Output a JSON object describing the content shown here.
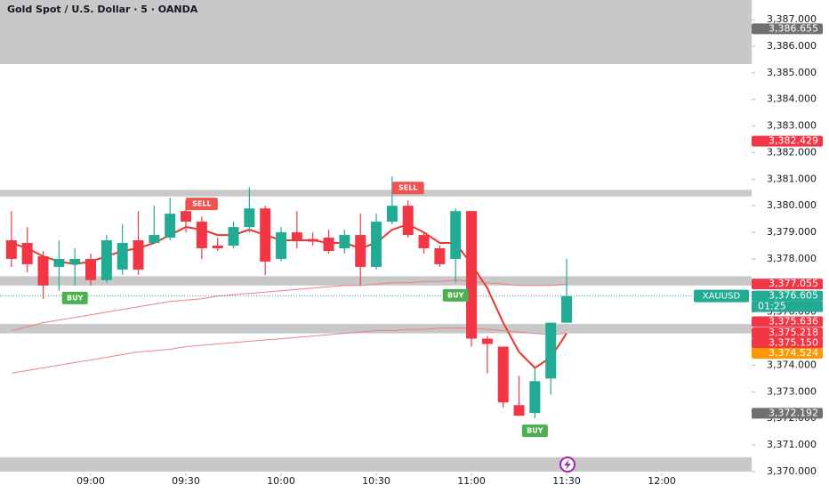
{
  "chart_data": {
    "type": "candlestick",
    "title": "Gold Spot / U.S. Dollar · 5 · OANDA",
    "symbol": "XAUUSD",
    "countdown": "01:25",
    "x": [
      515,
      520,
      525,
      530,
      535,
      540,
      545,
      550,
      555,
      560,
      565,
      570,
      575,
      580,
      585,
      590,
      595,
      600,
      605,
      610,
      615,
      620,
      625,
      630,
      635,
      640,
      645,
      650,
      655,
      660,
      665,
      670,
      675,
      680,
      685,
      690
    ],
    "open": [
      3378.7,
      3378.6,
      3378.1,
      3377.7,
      3377.8,
      3378.0,
      3377.2,
      3377.6,
      3378.7,
      3378.6,
      3378.8,
      3379.8,
      3379.4,
      3378.5,
      3378.5,
      3379.2,
      3379.9,
      3378.0,
      3379.0,
      3378.75,
      3378.8,
      3378.4,
      3378.9,
      3377.7,
      3379.4,
      3380.0,
      3378.9,
      3378.4,
      3378.0,
      3379.8,
      3375.0,
      3374.7,
      3372.5,
      3372.2,
      3373.5,
      3375.6
    ],
    "high": [
      3379.8,
      3379.2,
      3378.3,
      3378.7,
      3378.4,
      3378.2,
      3378.9,
      3379.3,
      3379.8,
      3380.0,
      3380.3,
      3380.2,
      3379.6,
      3378.8,
      3379.4,
      3380.7,
      3380.0,
      3379.2,
      3379.8,
      3379.0,
      3379.1,
      3379.1,
      3379.7,
      3379.7,
      3381.1,
      3380.2,
      3379.0,
      3378.5,
      3379.9,
      3379.8,
      3375.1,
      3374.7,
      3373.6,
      3373.9,
      3375.6,
      3378.0
    ],
    "low": [
      3377.7,
      3377.5,
      3376.5,
      3376.8,
      3377.0,
      3377.0,
      3377.1,
      3377.4,
      3377.4,
      3378.6,
      3378.7,
      3379.0,
      3378.0,
      3378.3,
      3378.4,
      3379.0,
      3377.4,
      3377.9,
      3378.4,
      3378.5,
      3378.2,
      3378.2,
      3377.0,
      3377.6,
      3379.3,
      3378.8,
      3378.2,
      3377.7,
      3377.1,
      3374.7,
      3373.7,
      3372.4,
      3372.1,
      3372.0,
      3372.9,
      3375.6
    ],
    "close": [
      3378.0,
      3377.8,
      3377.0,
      3378.0,
      3378.0,
      3377.2,
      3378.7,
      3378.6,
      3377.6,
      3378.9,
      3379.7,
      3379.4,
      3378.4,
      3378.4,
      3379.2,
      3379.9,
      3377.9,
      3379.0,
      3378.7,
      3378.65,
      3378.3,
      3378.9,
      3377.7,
      3379.4,
      3380.0,
      3378.9,
      3378.4,
      3377.8,
      3379.8,
      3375.0,
      3374.8,
      3372.6,
      3372.1,
      3373.4,
      3375.6,
      3376.6
    ],
    "up_color": "#22ab94",
    "down_color": "#f23645",
    "lines": [
      {
        "color": "#e8372c",
        "width": 2,
        "values": [
          3378.6,
          3378.4,
          3378.1,
          3377.9,
          3377.8,
          3377.9,
          3378.1,
          3378.3,
          3378.4,
          3378.6,
          3378.9,
          3379.2,
          3379.1,
          3378.9,
          3378.9,
          3379.1,
          3378.9,
          3378.7,
          3378.7,
          3378.7,
          3378.6,
          3378.6,
          3378.4,
          3378.6,
          3379.1,
          3379.3,
          3379.0,
          3378.6,
          3378.6,
          3377.8,
          3376.9,
          3375.6,
          3374.5,
          3373.9,
          3374.3,
          3375.2
        ]
      },
      {
        "color": "#f08080",
        "width": 1,
        "values": [
          3373.7,
          3373.8,
          3373.9,
          3374.0,
          3374.1,
          3374.2,
          3374.3,
          3374.4,
          3374.5,
          3374.55,
          3374.6,
          3374.7,
          3374.75,
          3374.8,
          3374.85,
          3374.9,
          3374.95,
          3375.0,
          3375.05,
          3375.1,
          3375.15,
          3375.2,
          3375.25,
          3375.3,
          3375.3,
          3375.35,
          3375.35,
          3375.4,
          3375.4,
          3375.4,
          3375.35,
          3375.3,
          3375.25,
          3375.2,
          3375.15,
          3375.2
        ]
      },
      {
        "color": "#f08080",
        "width": 1,
        "values": [
          3375.3,
          3375.45,
          3375.6,
          3375.7,
          3375.8,
          3375.9,
          3376.0,
          3376.1,
          3376.2,
          3376.3,
          3376.4,
          3376.45,
          3376.5,
          3376.6,
          3376.65,
          3376.7,
          3376.75,
          3376.8,
          3376.85,
          3376.9,
          3376.95,
          3377.0,
          3377.0,
          3377.05,
          3377.1,
          3377.1,
          3377.15,
          3377.15,
          3377.2,
          3377.15,
          3377.1,
          3377.05,
          3377.0,
          3377.0,
          3377.0,
          3377.05
        ]
      }
    ],
    "zones": [
      [
        3385.33,
        3387.74
      ],
      [
        3380.35,
        3380.6
      ],
      [
        3377.0,
        3377.35
      ],
      [
        3375.2,
        3375.55
      ],
      [
        3370.0,
        3370.54
      ]
    ],
    "zone_color": "#c8c8c8",
    "signals": [
      {
        "x": 535,
        "label": "BUY",
        "position": "below",
        "color": "#4caf50"
      },
      {
        "x": 575,
        "label": "SELL",
        "position": "above",
        "color": "#ef5350"
      },
      {
        "x": 640,
        "label": "SELL",
        "position": "above",
        "color": "#ef5350"
      },
      {
        "x": 655,
        "label": "BUY",
        "position": "below",
        "color": "#4caf50"
      },
      {
        "x": 680,
        "label": "BUY",
        "position": "below",
        "color": "#4caf50"
      }
    ],
    "current_price": 3376.605,
    "price_labels": [
      {
        "value": 3386.655,
        "label": "3,386.655",
        "color": "#707070"
      },
      {
        "value": 3382.429,
        "label": "3,382.429",
        "color": "#f23645"
      },
      {
        "value": 3377.055,
        "label": "3,377.055",
        "color": "#f23645"
      },
      {
        "value": 3376.605,
        "label": "3,376.605",
        "color": "#22ab94"
      },
      {
        "value": 3375.636,
        "label": "3,375.636",
        "color": "#f23645"
      },
      {
        "value": 3375.218,
        "label": "3,375.218",
        "color": "#f23645"
      },
      {
        "value": 3375.15,
        "label": "3,375.150",
        "color": "#f23645"
      },
      {
        "value": 3374.524,
        "label": "3,374.524",
        "color": "#ff9800"
      },
      {
        "value": 3372.192,
        "label": "3,372.192",
        "color": "#707070"
      }
    ],
    "xlim": [
      511.4,
      748.3
    ],
    "ylim": [
      3369.93,
      3387.74
    ],
    "xticks": [
      {
        "value": 540,
        "label": "09:00"
      },
      {
        "value": 570,
        "label": "09:30"
      },
      {
        "value": 600,
        "label": "10:00"
      },
      {
        "value": 630,
        "label": "10:30"
      },
      {
        "value": 660,
        "label": "11:00"
      },
      {
        "value": 690,
        "label": "11:30"
      },
      {
        "value": 720,
        "label": "12:00"
      }
    ],
    "yticks": [
      {
        "value": 3370,
        "label": "3,370.000"
      },
      {
        "value": 3371,
        "label": "3,371.000"
      },
      {
        "value": 3372,
        "label": "3,372.000"
      },
      {
        "value": 3373,
        "label": "3,373.000"
      },
      {
        "value": 3374,
        "label": "3,374.000"
      },
      {
        "value": 3375,
        "label": "3,375.000"
      },
      {
        "value": 3376,
        "label": "3,376.000"
      },
      {
        "value": 3377,
        "label": "3,377.000"
      },
      {
        "value": 3378,
        "label": "3,378.000"
      },
      {
        "value": 3379,
        "label": "3,379.000"
      },
      {
        "value": 3380,
        "label": "3,380.000"
      },
      {
        "value": 3381,
        "label": "3,381.000"
      },
      {
        "value": 3382,
        "label": "3,382.000"
      },
      {
        "value": 3383,
        "label": "3,383.000"
      },
      {
        "value": 3384,
        "label": "3,384.000"
      },
      {
        "value": 3385,
        "label": "3,385.000"
      },
      {
        "value": 3386,
        "label": "3,386.000"
      },
      {
        "value": 3387,
        "label": "3,387.000"
      }
    ]
  }
}
